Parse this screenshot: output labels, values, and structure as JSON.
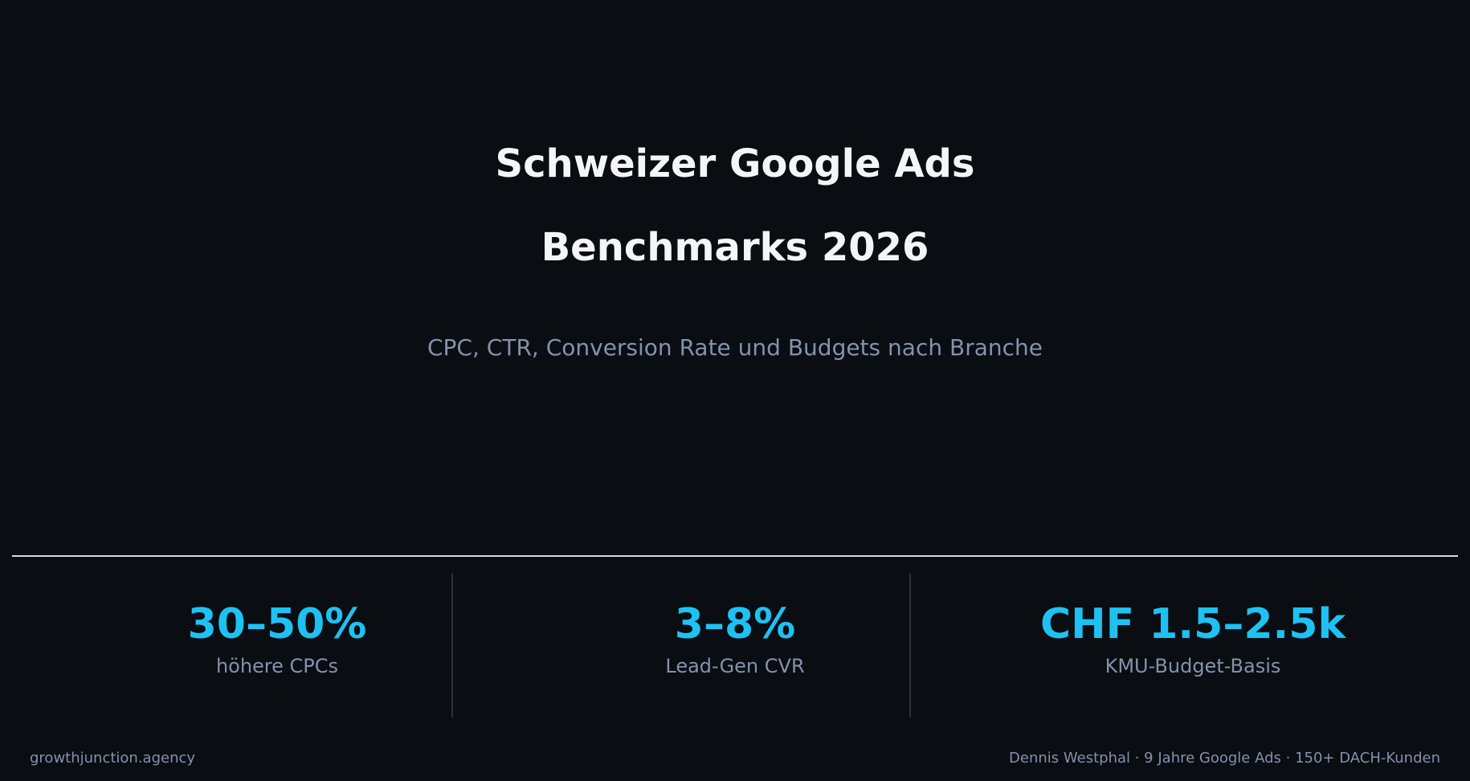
{
  "title": {
    "line1": "Schweizer Google Ads",
    "line2": "Benchmarks 2026"
  },
  "subtitle": "CPC, CTR, Conversion Rate und Budgets nach Branche",
  "stats": [
    {
      "value": "30–50%",
      "label": "höhere CPCs"
    },
    {
      "value": "3–8%",
      "label": "Lead-Gen CVR"
    },
    {
      "value": "CHF 1.5–2.5k",
      "label": "KMU-Budget-Basis"
    }
  ],
  "footer": {
    "left": "growthjunction.agency",
    "right": "Dennis Westphal · 9 Jahre Google Ads · 150+ DACH-Kunden"
  },
  "colors": {
    "background": "#0a0d12",
    "accent": "#1ec2f2",
    "muted_text": "#8492ab",
    "title_text": "#f4f5f7"
  }
}
